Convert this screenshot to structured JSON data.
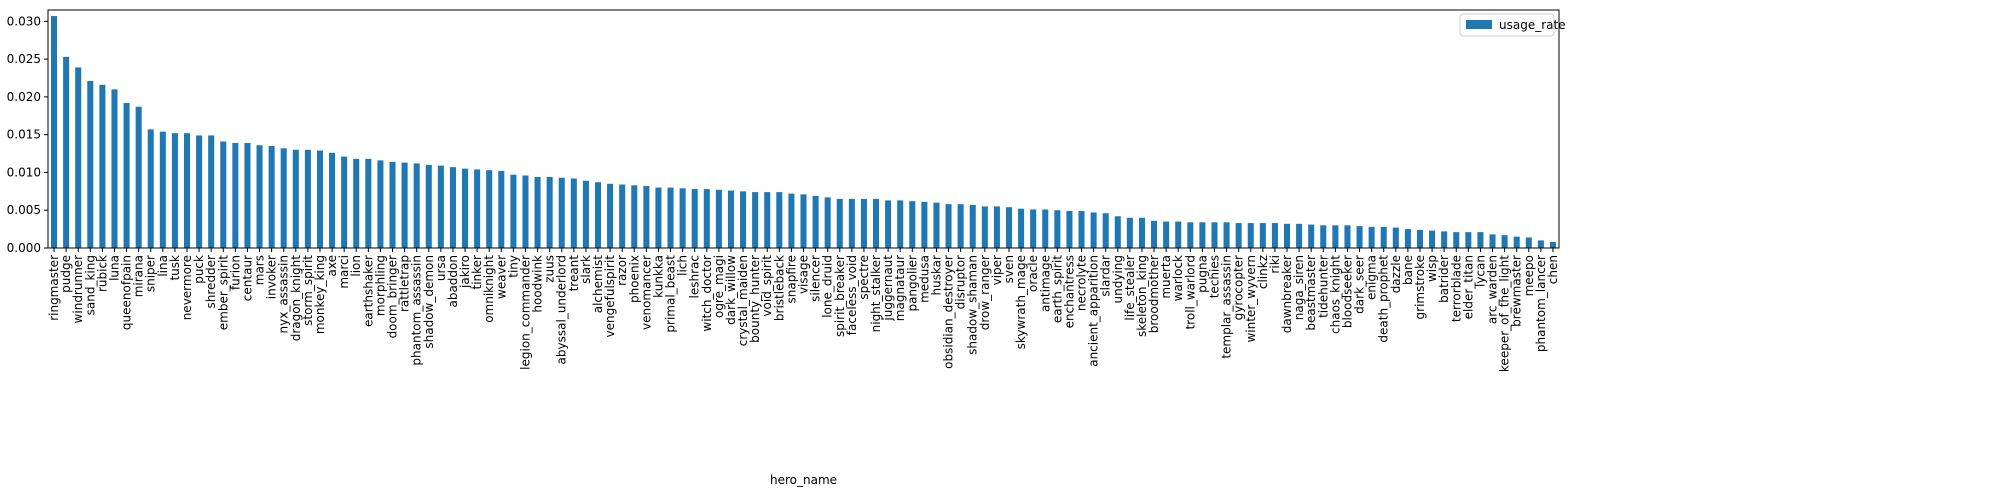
{
  "chart_data": {
    "type": "bar",
    "xlabel": "hero_name",
    "ylabel": "",
    "ylim": [
      0,
      0.0315
    ],
    "yticks": [
      "0.000",
      "0.005",
      "0.010",
      "0.015",
      "0.020",
      "0.025",
      "0.030"
    ],
    "grid": false,
    "legend_position": "top-right",
    "colors": {
      "bar": "#1f77b4",
      "axis": "#000000",
      "background": "#ffffff"
    },
    "series": [
      {
        "name": "usage_rate"
      }
    ],
    "categories": [
      "ringmaster",
      "pudge",
      "windrunner",
      "sand_king",
      "rubick",
      "luna",
      "queenofpain",
      "mirana",
      "sniper",
      "lina",
      "tusk",
      "nevermore",
      "puck",
      "shredder",
      "ember_spirit",
      "furion",
      "centaur",
      "mars",
      "invoker",
      "nyx_assassin",
      "dragon_knight",
      "storm_spirit",
      "monkey_king",
      "axe",
      "marci",
      "lion",
      "earthshaker",
      "morphling",
      "doom_bringer",
      "rattletrap",
      "phantom_assassin",
      "shadow_demon",
      "ursa",
      "abaddon",
      "jakiro",
      "tinker",
      "omniknight",
      "weaver",
      "tiny",
      "legion_commander",
      "hoodwink",
      "zuus",
      "abyssal_underlord",
      "treant",
      "slark",
      "alchemist",
      "vengefulspirit",
      "razor",
      "phoenix",
      "venomancer",
      "kunkka",
      "primal_beast",
      "lich",
      "leshrac",
      "witch_doctor",
      "ogre_magi",
      "dark_willow",
      "crystal_maiden",
      "bounty_hunter",
      "void_spirit",
      "bristleback",
      "snapfire",
      "visage",
      "silencer",
      "lone_druid",
      "spirit_breaker",
      "faceless_void",
      "spectre",
      "night_stalker",
      "juggernaut",
      "magnataur",
      "pangolier",
      "medusa",
      "huskar",
      "obsidian_destroyer",
      "disruptor",
      "shadow_shaman",
      "drow_ranger",
      "viper",
      "sven",
      "skywrath_mage",
      "oracle",
      "antimage",
      "earth_spirit",
      "enchantress",
      "necrolyte",
      "ancient_apparition",
      "slardar",
      "undying",
      "life_stealer",
      "skeleton_king",
      "broodmother",
      "muerta",
      "warlock",
      "troll_warlord",
      "pugna",
      "techies",
      "templar_assassin",
      "gyrocopter",
      "winter_wyvern",
      "clinkz",
      "riki",
      "dawnbreaker",
      "naga_siren",
      "beastmaster",
      "tidehunter",
      "chaos_knight",
      "bloodseeker",
      "dark_seer",
      "enigma",
      "death_prophet",
      "dazzle",
      "bane",
      "grimstroke",
      "wisp",
      "batrider",
      "terrorblade",
      "elder_titan",
      "lycan",
      "arc_warden",
      "keeper_of_the_light",
      "brewmaster",
      "meepo",
      "phantom_lancer",
      "chen"
    ],
    "values": [
      0.0307,
      0.0253,
      0.0239,
      0.0221,
      0.0216,
      0.021,
      0.0192,
      0.0187,
      0.0157,
      0.0154,
      0.0152,
      0.0152,
      0.0149,
      0.0149,
      0.0141,
      0.0139,
      0.0139,
      0.0136,
      0.0135,
      0.0132,
      0.013,
      0.013,
      0.0129,
      0.0126,
      0.0121,
      0.0118,
      0.0118,
      0.0116,
      0.0114,
      0.0113,
      0.0112,
      0.011,
      0.0109,
      0.0107,
      0.0105,
      0.0104,
      0.0103,
      0.0102,
      0.0097,
      0.0096,
      0.0094,
      0.0094,
      0.0093,
      0.0092,
      0.0089,
      0.0087,
      0.0085,
      0.0084,
      0.0083,
      0.0082,
      0.008,
      0.008,
      0.0079,
      0.0078,
      0.0078,
      0.0077,
      0.0076,
      0.0075,
      0.0074,
      0.0074,
      0.0074,
      0.0072,
      0.0071,
      0.0069,
      0.0067,
      0.0065,
      0.0065,
      0.0065,
      0.0065,
      0.0063,
      0.0063,
      0.0062,
      0.0061,
      0.006,
      0.0058,
      0.0058,
      0.0057,
      0.0055,
      0.0055,
      0.0054,
      0.0052,
      0.0051,
      0.0051,
      0.005,
      0.0049,
      0.0049,
      0.0047,
      0.0046,
      0.0042,
      0.004,
      0.004,
      0.0036,
      0.0035,
      0.0035,
      0.0034,
      0.0034,
      0.0034,
      0.0034,
      0.0033,
      0.0033,
      0.0033,
      0.0033,
      0.0032,
      0.0032,
      0.0031,
      0.003,
      0.003,
      0.003,
      0.0029,
      0.0028,
      0.0028,
      0.0027,
      0.0025,
      0.0024,
      0.0023,
      0.0022,
      0.0021,
      0.0021,
      0.0021,
      0.0018,
      0.0017,
      0.0015,
      0.0014,
      0.001,
      0.0008
    ]
  }
}
